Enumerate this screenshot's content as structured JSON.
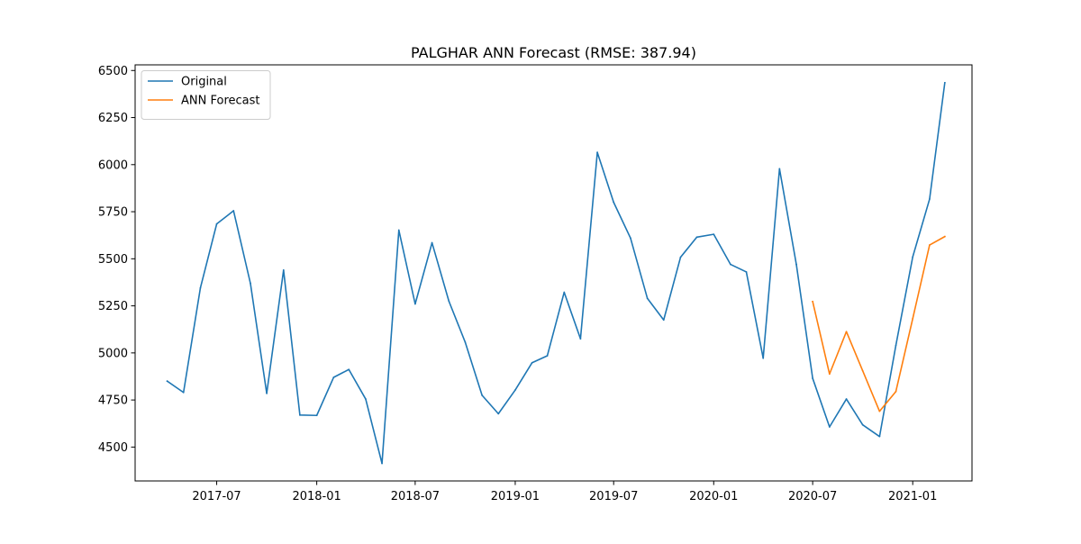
{
  "chart_data": {
    "type": "line",
    "title": "PALGHAR ANN Forecast (RMSE: 387.94)",
    "xlabel": "",
    "ylabel": "",
    "x_axis_type": "date",
    "xlim": [
      "2017-02-01",
      "2021-04-20"
    ],
    "ylim": [
      4320,
      6530
    ],
    "x_ticks": [
      "2017-07-01",
      "2018-01-01",
      "2018-07-01",
      "2019-01-01",
      "2019-07-01",
      "2020-01-01",
      "2020-07-01",
      "2021-01-01"
    ],
    "x_tick_labels": [
      "2017-07",
      "2018-01",
      "2018-07",
      "2019-01",
      "2019-07",
      "2020-01",
      "2020-07",
      "2021-01"
    ],
    "y_ticks": [
      4500,
      4750,
      5000,
      5250,
      5500,
      5750,
      6000,
      6250,
      6500
    ],
    "y_tick_labels": [
      "4500",
      "4750",
      "5000",
      "5250",
      "5500",
      "5750",
      "6000",
      "6250",
      "6500"
    ],
    "grid": false,
    "legend_position": "upper left",
    "series": [
      {
        "name": "Original",
        "color": "#1f77b4",
        "x": [
          "2017-04-01",
          "2017-05-01",
          "2017-06-01",
          "2017-07-01",
          "2017-08-01",
          "2017-09-01",
          "2017-10-01",
          "2017-11-01",
          "2017-12-01",
          "2018-01-01",
          "2018-02-01",
          "2018-03-01",
          "2018-04-01",
          "2018-05-01",
          "2018-06-01",
          "2018-07-01",
          "2018-08-01",
          "2018-09-01",
          "2018-10-01",
          "2018-11-01",
          "2018-12-01",
          "2019-01-01",
          "2019-02-01",
          "2019-03-01",
          "2019-04-01",
          "2019-05-01",
          "2019-06-01",
          "2019-07-01",
          "2019-08-01",
          "2019-09-01",
          "2019-10-01",
          "2019-11-01",
          "2019-12-01",
          "2020-01-01",
          "2020-02-01",
          "2020-03-01",
          "2020-04-01",
          "2020-05-01",
          "2020-06-01",
          "2020-07-01",
          "2020-08-01",
          "2020-09-01",
          "2020-10-01",
          "2020-11-01",
          "2020-12-01",
          "2021-01-01",
          "2021-02-01",
          "2021-03-01"
        ],
        "y": [
          4850,
          4790,
          5345,
          5685,
          5755,
          5370,
          4785,
          5440,
          4670,
          4668,
          4870,
          4912,
          4755,
          4413,
          5652,
          5260,
          5585,
          5275,
          5057,
          4775,
          4677,
          4803,
          4948,
          4985,
          5322,
          5075,
          6065,
          5800,
          5610,
          5290,
          5175,
          5508,
          5615,
          5630,
          5470,
          5430,
          4972,
          5978,
          5470,
          4865,
          4607,
          4755,
          4618,
          4556,
          5040,
          5510,
          5817,
          6435
        ]
      },
      {
        "name": "ANN Forecast",
        "color": "#ff7f0e",
        "x": [
          "2020-07-01",
          "2020-08-01",
          "2020-09-01",
          "2020-10-01",
          "2020-11-01",
          "2020-12-01",
          "2021-01-01",
          "2021-02-01",
          "2021-03-01"
        ],
        "y": [
          5273,
          4888,
          5113,
          4905,
          4690,
          4795,
          5182,
          5573,
          5618
        ]
      }
    ]
  }
}
